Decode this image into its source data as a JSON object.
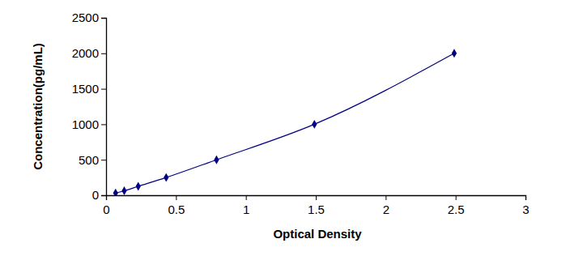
{
  "chart_data": {
    "type": "line",
    "x": [
      0.068,
      0.13,
      0.23,
      0.43,
      0.79,
      1.49,
      2.49
    ],
    "values": [
      31.25,
      62.5,
      125,
      250,
      500,
      1000,
      2000
    ],
    "x_label": "Optical Density",
    "y_label": "Concentration(pg/mL)",
    "color": "#000080",
    "marker": "diamond",
    "line_style": "solid",
    "xlim": [
      0,
      3
    ],
    "xticks": [
      0,
      0.5,
      1,
      1.5,
      2,
      2.5,
      3
    ],
    "ylim": [
      0,
      2500
    ],
    "yticks": [
      0,
      500,
      1000,
      1500,
      2000,
      2500
    ],
    "grid": false
  }
}
